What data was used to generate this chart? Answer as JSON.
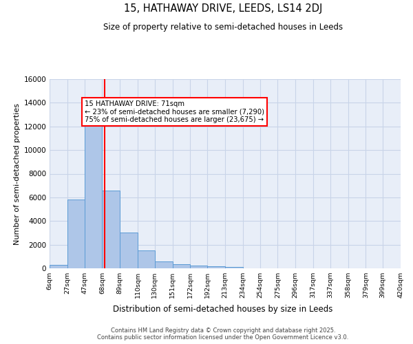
{
  "title": "15, HATHAWAY DRIVE, LEEDS, LS14 2DJ",
  "subtitle": "Size of property relative to semi-detached houses in Leeds",
  "xlabel": "Distribution of semi-detached houses by size in Leeds",
  "ylabel": "Number of semi-detached properties",
  "bin_labels": [
    "6sqm",
    "27sqm",
    "47sqm",
    "68sqm",
    "89sqm",
    "110sqm",
    "130sqm",
    "151sqm",
    "172sqm",
    "192sqm",
    "213sqm",
    "234sqm",
    "254sqm",
    "275sqm",
    "296sqm",
    "317sqm",
    "337sqm",
    "358sqm",
    "379sqm",
    "399sqm",
    "420sqm"
  ],
  "bin_edges": [
    6,
    27,
    47,
    68,
    89,
    110,
    130,
    151,
    172,
    192,
    213,
    234,
    254,
    275,
    296,
    317,
    337,
    358,
    379,
    399,
    420
  ],
  "bar_heights": [
    300,
    5800,
    13250,
    6600,
    3050,
    1500,
    600,
    350,
    250,
    150,
    100,
    0,
    0,
    0,
    0,
    0,
    0,
    0,
    0,
    0
  ],
  "bar_color": "#aec6e8",
  "bar_edge_color": "#5b9bd5",
  "property_size": 71,
  "vline_color": "red",
  "annotation_text": "15 HATHAWAY DRIVE: 71sqm\n← 23% of semi-detached houses are smaller (7,290)\n75% of semi-detached houses are larger (23,675) →",
  "annotation_box_color": "white",
  "annotation_box_edge": "red",
  "ylim": [
    0,
    16000
  ],
  "yticks": [
    0,
    2000,
    4000,
    6000,
    8000,
    10000,
    12000,
    14000,
    16000
  ],
  "grid_color": "#c8d4e8",
  "background_color": "#e8eef8",
  "footer_line1": "Contains HM Land Registry data © Crown copyright and database right 2025.",
  "footer_line2": "Contains public sector information licensed under the Open Government Licence v3.0."
}
